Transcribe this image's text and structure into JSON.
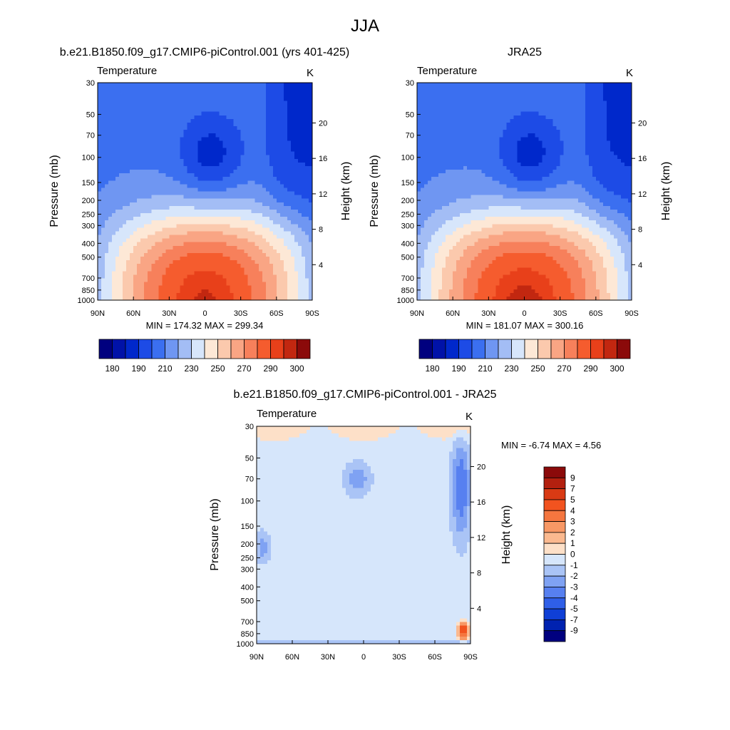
{
  "page": {
    "title": "JJA"
  },
  "chart_data": [
    {
      "type": "heatmap",
      "title": "b.e21.B1850.f09_g17.CMIP6-piControl.001 (yrs 401-425)",
      "left_label": "Temperature",
      "right_label": "K",
      "ylabel": "Pressure (mb)",
      "ylabel_right": "Height (km)",
      "x_ticks": [
        "90N",
        "60N",
        "30N",
        "0",
        "30S",
        "60S",
        "90S"
      ],
      "y_ticks": [
        "30",
        "50",
        "70",
        "100",
        "150",
        "200",
        "250",
        "300",
        "400",
        "500",
        "700",
        "850",
        "1000"
      ],
      "y_right_ticks": [
        "20",
        "16",
        "12",
        "8",
        "4"
      ],
      "ylim": [
        1000,
        30
      ],
      "xlim": [
        90,
        -90
      ],
      "stats": "MIN = 174.32  MAX = 299.34",
      "min": 174.32,
      "max": 299.34,
      "colorbar": {
        "orientation": "horizontal",
        "colors": [
          "#00007f",
          "#0012a8",
          "#0028cb",
          "#1d4be6",
          "#3b6ff0",
          "#6f96f2",
          "#a3bdf5",
          "#d7e6fb",
          "#fde8d6",
          "#fbc9ad",
          "#f9a584",
          "#f7805b",
          "#f55c2e",
          "#e8401a",
          "#c22710",
          "#8b0a0a"
        ],
        "labels": [
          "180",
          "190",
          "210",
          "230",
          "250",
          "270",
          "290",
          "300"
        ]
      }
    },
    {
      "type": "heatmap",
      "title": "JRA25",
      "left_label": "Temperature",
      "right_label": "K",
      "ylabel": "Pressure (mb)",
      "ylabel_right": "Height (km)",
      "x_ticks": [
        "90N",
        "60N",
        "30N",
        "0",
        "30S",
        "60S",
        "90S"
      ],
      "y_ticks": [
        "30",
        "50",
        "70",
        "100",
        "150",
        "200",
        "250",
        "300",
        "400",
        "500",
        "700",
        "850",
        "1000"
      ],
      "y_right_ticks": [
        "20",
        "16",
        "12",
        "8",
        "4"
      ],
      "ylim": [
        1000,
        30
      ],
      "xlim": [
        90,
        -90
      ],
      "stats": "MIN = 181.07  MAX = 300.16",
      "min": 181.07,
      "max": 300.16,
      "colorbar": {
        "orientation": "horizontal",
        "colors": [
          "#00007f",
          "#0012a8",
          "#0028cb",
          "#1d4be6",
          "#3b6ff0",
          "#6f96f2",
          "#a3bdf5",
          "#d7e6fb",
          "#fde8d6",
          "#fbc9ad",
          "#f9a584",
          "#f7805b",
          "#f55c2e",
          "#e8401a",
          "#c22710",
          "#8b0a0a"
        ],
        "labels": [
          "180",
          "190",
          "210",
          "230",
          "250",
          "270",
          "290",
          "300"
        ]
      }
    },
    {
      "type": "heatmap",
      "title": "b.e21.B1850.f09_g17.CMIP6-piControl.001 - JRA25",
      "left_label": "Temperature",
      "right_label": "K",
      "ylabel": "Pressure (mb)",
      "ylabel_right": "Height (km)",
      "x_ticks": [
        "90N",
        "60N",
        "30N",
        "0",
        "30S",
        "60S",
        "90S"
      ],
      "y_ticks": [
        "30",
        "50",
        "70",
        "100",
        "150",
        "200",
        "250",
        "300",
        "400",
        "500",
        "700",
        "850",
        "1000"
      ],
      "y_right_ticks": [
        "20",
        "16",
        "12",
        "8",
        "4"
      ],
      "ylim": [
        1000,
        30
      ],
      "xlim": [
        90,
        -90
      ],
      "stats": "MIN =  -6.74  MAX =   4.56",
      "min": -6.74,
      "max": 4.56,
      "colorbar": {
        "orientation": "vertical",
        "colors": [
          "#8b0a0a",
          "#b3200f",
          "#d93a14",
          "#f2531f",
          "#f5763f",
          "#f89865",
          "#fbb98f",
          "#fde0c8",
          "#d6e6fb",
          "#aac4f6",
          "#7fa2f3",
          "#5780f0",
          "#2f5fe8",
          "#0f3fd6",
          "#0022b0",
          "#00007f"
        ],
        "labels": [
          "9",
          "7",
          "5",
          "4",
          "3",
          "2",
          "1",
          "0",
          "-1",
          "-2",
          "-3",
          "-4",
          "-5",
          "-7",
          "-9"
        ]
      }
    }
  ]
}
